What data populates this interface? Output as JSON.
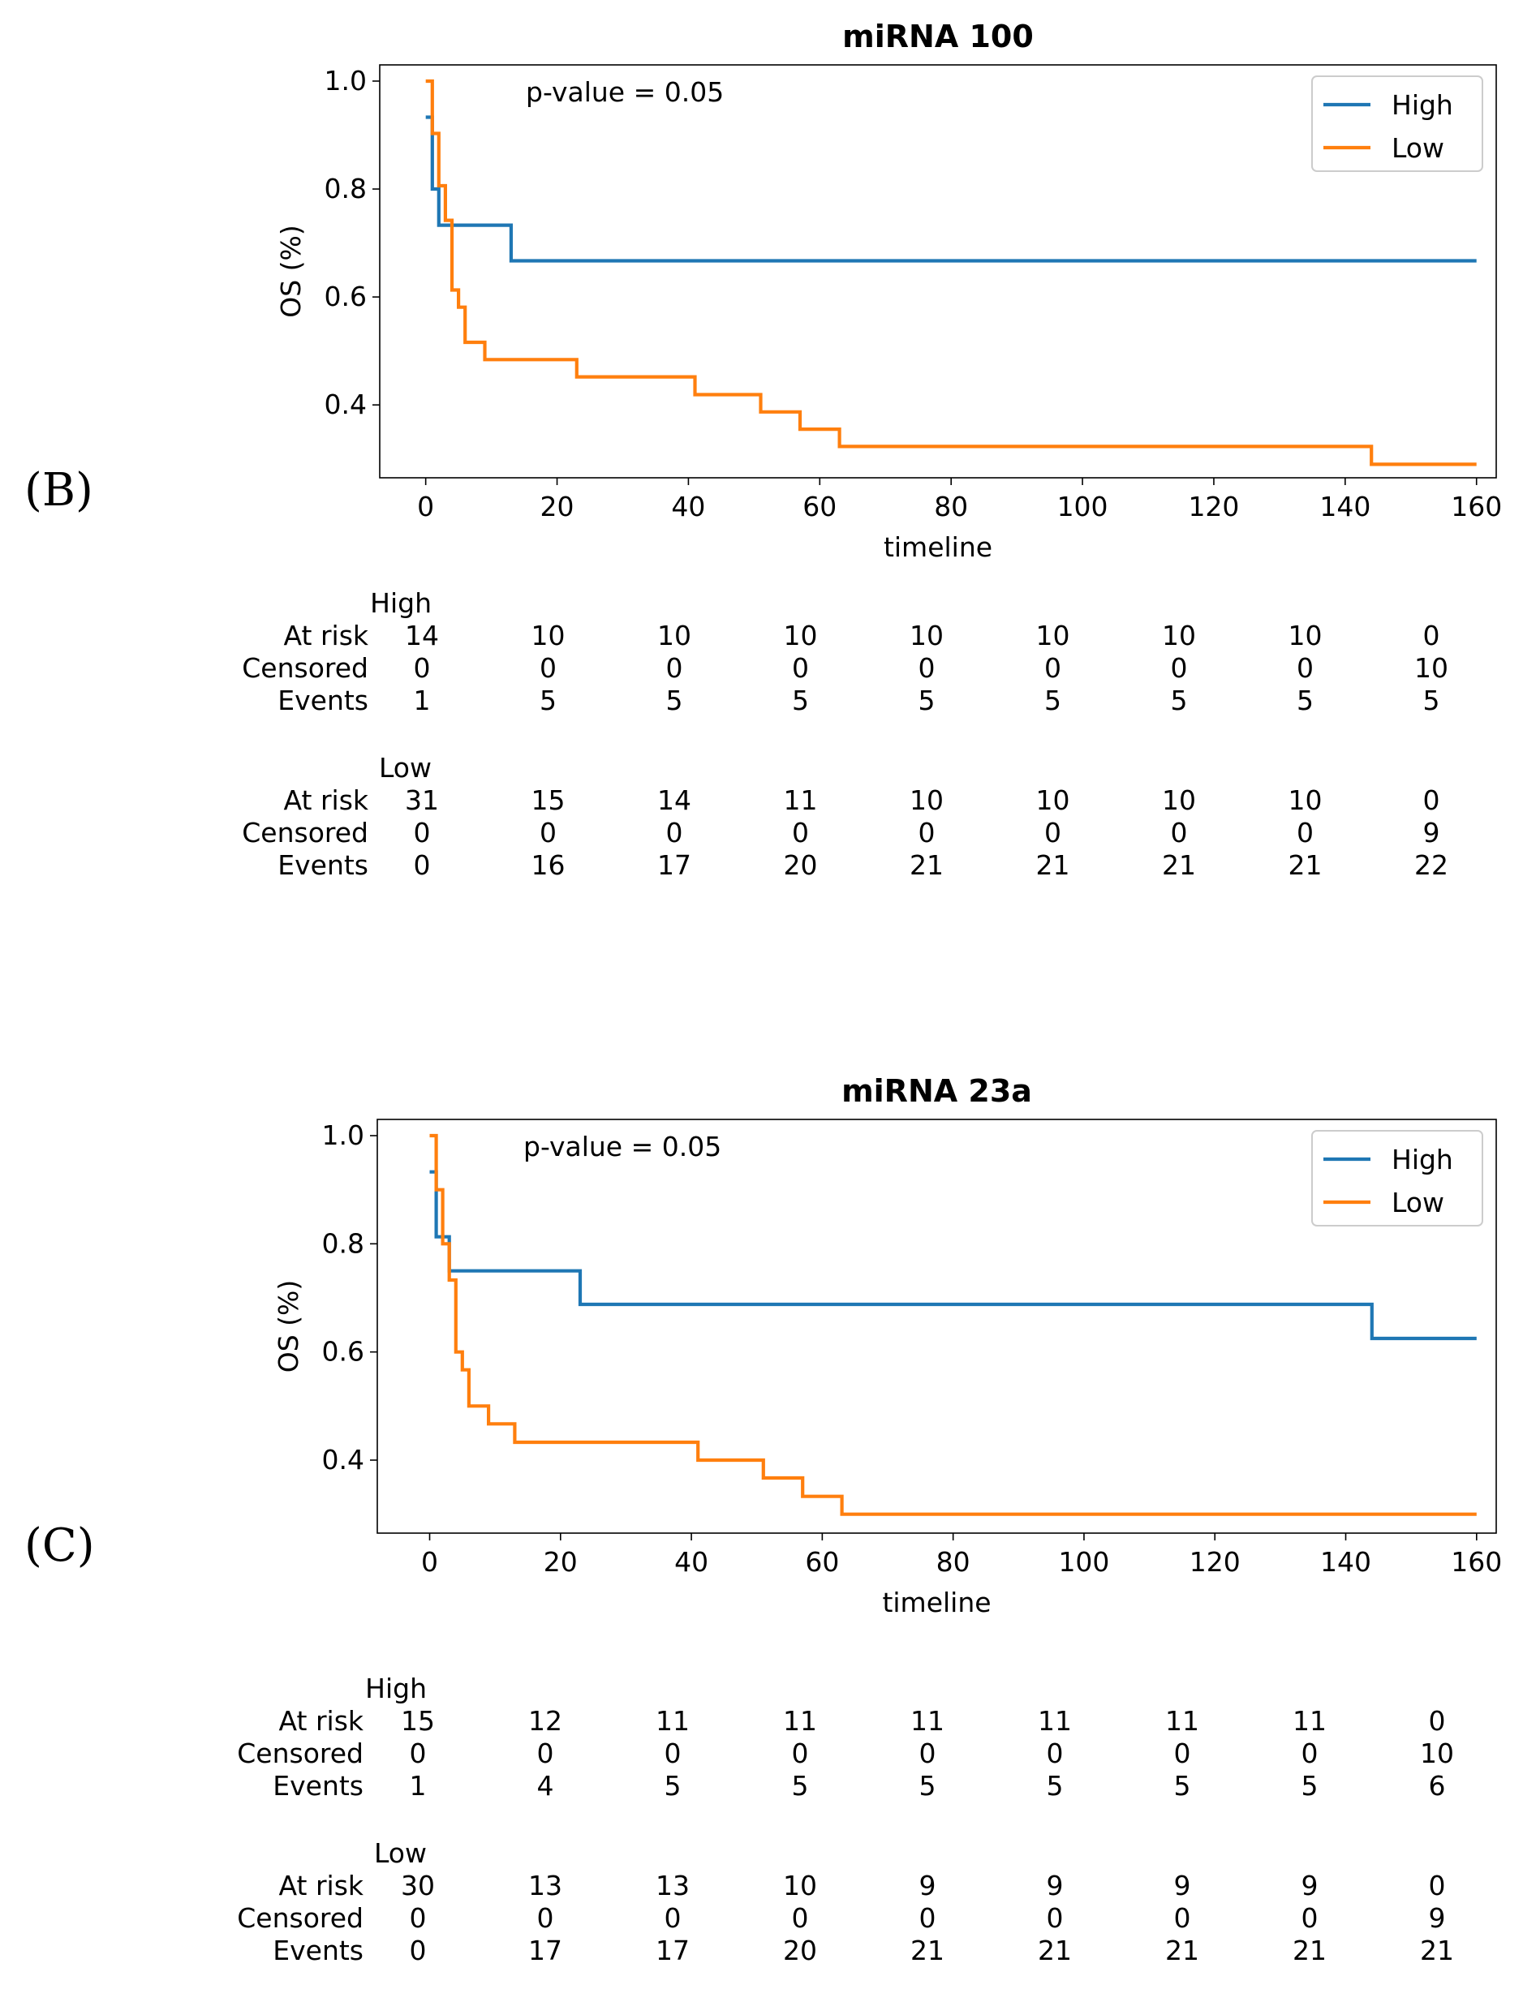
{
  "panels": [
    {
      "label": "(B)",
      "chart_data": {
        "type": "line",
        "title": "miRNA 100",
        "xlabel": "timeline",
        "ylabel": "OS (%)",
        "xlim": [
          -7,
          163
        ],
        "ylim": [
          0.265,
          1.03
        ],
        "xticks": [
          0,
          20,
          40,
          60,
          80,
          100,
          120,
          140,
          160
        ],
        "xtick_labels": [
          "0",
          "20",
          "40",
          "60",
          "80",
          "100",
          "120",
          "140",
          "160"
        ],
        "yticks": [
          0.4,
          0.6,
          0.8,
          1.0
        ],
        "ytick_labels": [
          "0.4",
          "0.6",
          "0.8",
          "1.0"
        ],
        "annotation": "p-value = 0.05",
        "legend": [
          "High",
          "Low"
        ],
        "legend_position": "top-right",
        "series": [
          {
            "name": "High",
            "color": "#1f77b4",
            "x": [
              0,
              1,
              1,
              2,
              2,
              13,
              13,
              160
            ],
            "y": [
              0.933,
              0.933,
              0.8,
              0.8,
              0.733,
              0.733,
              0.667,
              0.667
            ]
          },
          {
            "name": "Low",
            "color": "#ff7f0e",
            "x": [
              0,
              1,
              1,
              2,
              2,
              3,
              3,
              4,
              4,
              5,
              5,
              6,
              6,
              9,
              9,
              23,
              23,
              41,
              41,
              51,
              51,
              57,
              57,
              63,
              63,
              144,
              144,
              160
            ],
            "y": [
              1.0,
              1.0,
              0.903,
              0.903,
              0.806,
              0.806,
              0.742,
              0.742,
              0.613,
              0.613,
              0.581,
              0.581,
              0.516,
              0.516,
              0.484,
              0.484,
              0.452,
              0.452,
              0.419,
              0.419,
              0.387,
              0.387,
              0.355,
              0.355,
              0.323,
              0.323,
              0.29,
              0.29
            ]
          }
        ],
        "risk_table": {
          "groups": [
            {
              "name": "High",
              "rows": [
                {
                  "label": "At risk",
                  "values": [
                    "14",
                    "10",
                    "10",
                    "10",
                    "10",
                    "10",
                    "10",
                    "10",
                    "0"
                  ]
                },
                {
                  "label": "Censored",
                  "values": [
                    "0",
                    "0",
                    "0",
                    "0",
                    "0",
                    "0",
                    "0",
                    "0",
                    "10"
                  ]
                },
                {
                  "label": "Events",
                  "values": [
                    "1",
                    "5",
                    "5",
                    "5",
                    "5",
                    "5",
                    "5",
                    "5",
                    "5"
                  ]
                }
              ]
            },
            {
              "name": "Low",
              "rows": [
                {
                  "label": "At risk",
                  "values": [
                    "31",
                    "15",
                    "14",
                    "11",
                    "10",
                    "10",
                    "10",
                    "10",
                    "0"
                  ]
                },
                {
                  "label": "Censored",
                  "values": [
                    "0",
                    "0",
                    "0",
                    "0",
                    "0",
                    "0",
                    "0",
                    "0",
                    "9"
                  ]
                },
                {
                  "label": "Events",
                  "values": [
                    "0",
                    "16",
                    "17",
                    "20",
                    "21",
                    "21",
                    "21",
                    "21",
                    "22"
                  ]
                }
              ]
            }
          ]
        }
      }
    },
    {
      "label": "(C)",
      "chart_data": {
        "type": "line",
        "title": "miRNA 23a",
        "xlabel": "timeline",
        "ylabel": "OS (%)",
        "xlim": [
          -8,
          163
        ],
        "ylim": [
          0.265,
          1.03
        ],
        "xticks": [
          0,
          20,
          40,
          60,
          80,
          100,
          120,
          140,
          160
        ],
        "xtick_labels": [
          "0",
          "20",
          "40",
          "60",
          "80",
          "100",
          "120",
          "140",
          "160"
        ],
        "yticks": [
          0.4,
          0.6,
          0.8,
          1.0
        ],
        "ytick_labels": [
          "0.4",
          "0.6",
          "0.8",
          "1.0"
        ],
        "annotation": "p-value = 0.05",
        "legend": [
          "High",
          "Low"
        ],
        "legend_position": "top-right",
        "series": [
          {
            "name": "High",
            "color": "#1f77b4",
            "x": [
              0,
              1,
              1,
              3,
              3,
              23,
              23,
              144,
              144,
              160
            ],
            "y": [
              0.933,
              0.933,
              0.813,
              0.813,
              0.75,
              0.75,
              0.688,
              0.688,
              0.625,
              0.625
            ]
          },
          {
            "name": "Low",
            "color": "#ff7f0e",
            "x": [
              0,
              1,
              1,
              2,
              2,
              3,
              3,
              4,
              4,
              5,
              5,
              6,
              6,
              9,
              9,
              13,
              13,
              41,
              41,
              51,
              51,
              57,
              57,
              63,
              63,
              160
            ],
            "y": [
              1.0,
              1.0,
              0.9,
              0.9,
              0.8,
              0.8,
              0.733,
              0.733,
              0.6,
              0.6,
              0.567,
              0.567,
              0.5,
              0.5,
              0.467,
              0.467,
              0.433,
              0.433,
              0.4,
              0.4,
              0.367,
              0.367,
              0.333,
              0.333,
              0.3,
              0.3
            ]
          }
        ],
        "risk_table": {
          "groups": [
            {
              "name": "High",
              "rows": [
                {
                  "label": "At risk",
                  "values": [
                    "15",
                    "12",
                    "11",
                    "11",
                    "11",
                    "11",
                    "11",
                    "11",
                    "0"
                  ]
                },
                {
                  "label": "Censored",
                  "values": [
                    "0",
                    "0",
                    "0",
                    "0",
                    "0",
                    "0",
                    "0",
                    "0",
                    "10"
                  ]
                },
                {
                  "label": "Events",
                  "values": [
                    "1",
                    "4",
                    "5",
                    "5",
                    "5",
                    "5",
                    "5",
                    "5",
                    "6"
                  ]
                }
              ]
            },
            {
              "name": "Low",
              "rows": [
                {
                  "label": "At risk",
                  "values": [
                    "30",
                    "13",
                    "13",
                    "10",
                    "9",
                    "9",
                    "9",
                    "9",
                    "0"
                  ]
                },
                {
                  "label": "Censored",
                  "values": [
                    "0",
                    "0",
                    "0",
                    "0",
                    "0",
                    "0",
                    "0",
                    "0",
                    "9"
                  ]
                },
                {
                  "label": "Events",
                  "values": [
                    "0",
                    "17",
                    "17",
                    "20",
                    "21",
                    "21",
                    "21",
                    "21",
                    "21"
                  ]
                }
              ]
            }
          ]
        }
      }
    }
  ]
}
